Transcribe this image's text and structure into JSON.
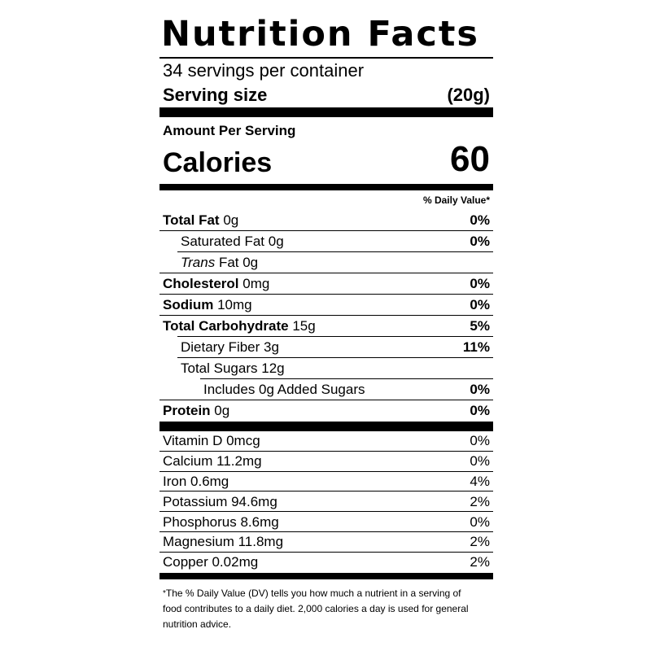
{
  "title": "Nutrition Facts",
  "servings_per_container": "34 servings per container",
  "serving_size": {
    "label": "Serving size",
    "value": "(20g)"
  },
  "amount_per_serving": "Amount Per Serving",
  "calories": {
    "label": "Calories",
    "value": "60"
  },
  "daily_value_header": "% Daily Value*",
  "nutrients": [
    {
      "label": "Total Fat",
      "amount": "0g",
      "dv": "0%"
    },
    {
      "label": "Saturated Fat",
      "amount": "0g",
      "dv": "0%"
    },
    {
      "label": "Trans",
      "amount": "Fat 0g",
      "dv": ""
    },
    {
      "label": "Cholesterol",
      "amount": "0mg",
      "dv": "0%"
    },
    {
      "label": "Sodium",
      "amount": "10mg",
      "dv": "0%"
    },
    {
      "label": "Total Carbohydrate",
      "amount": "15g",
      "dv": "5%"
    },
    {
      "label": "Dietary Fiber",
      "amount": "3g",
      "dv": "11%"
    },
    {
      "label": "Total Sugars",
      "amount": "12g",
      "dv": ""
    },
    {
      "label": "Includes 0g Added Sugars",
      "amount": "",
      "dv": "0%"
    },
    {
      "label": "Protein",
      "amount": "0g",
      "dv": "0%"
    }
  ],
  "vitamins": [
    {
      "label": "Vitamin D 0mcg",
      "dv": "0%"
    },
    {
      "label": "Calcium 11.2mg",
      "dv": "0%"
    },
    {
      "label": "Iron 0.6mg",
      "dv": "4%"
    },
    {
      "label": "Potassium 94.6mg",
      "dv": "2%"
    },
    {
      "label": "Phosphorus 8.6mg",
      "dv": "0%"
    },
    {
      "label": "Magnesium 11.8mg",
      "dv": "2%"
    },
    {
      "label": "Copper 0.02mg",
      "dv": "2%"
    }
  ],
  "footnote": {
    "star": "*",
    "text": "The % Daily Value (DV) tells you how much a nutrient in a serving of food contributes to a daily diet. 2,000 calories a day is used for general nutrition advice."
  }
}
